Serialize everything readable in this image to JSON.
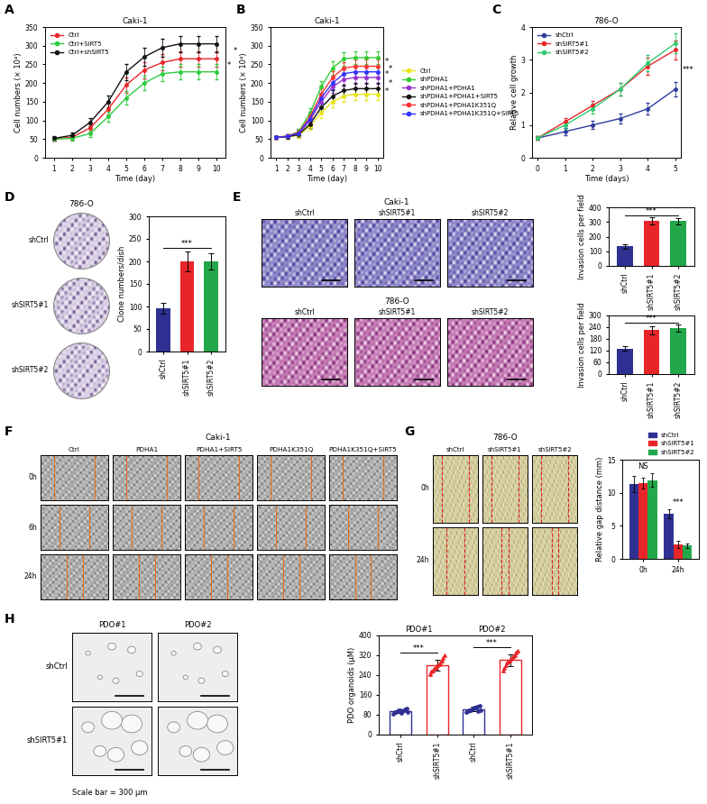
{
  "chart_data": [
    {
      "panel": "A",
      "type": "line",
      "title": "Caki-1",
      "xlabel": "Time (day)",
      "ylabel": "Cell numbers (× 10⁴)",
      "x": [
        1,
        2,
        3,
        4,
        5,
        6,
        7,
        8,
        9,
        10
      ],
      "xlim": [
        0.5,
        10.5
      ],
      "xticks": [
        1,
        2,
        3,
        4,
        5,
        6,
        7,
        8,
        9,
        10
      ],
      "ylim": [
        0,
        350
      ],
      "yticks": [
        0,
        50,
        100,
        150,
        200,
        250,
        300,
        350
      ],
      "legend": "upper left",
      "series": [
        {
          "name": "Ctrl",
          "color": "#e8262a",
          "marker": "o",
          "values": [
            50,
            55,
            80,
            130,
            195,
            235,
            255,
            265,
            265,
            265
          ],
          "errors": [
            5,
            6,
            10,
            15,
            20,
            22,
            22,
            20,
            20,
            20
          ]
        },
        {
          "name": "Ctrl+SIRT5",
          "color": "#2ecc40",
          "marker": "o",
          "values": [
            50,
            52,
            65,
            110,
            160,
            200,
            225,
            230,
            230,
            230
          ],
          "errors": [
            5,
            6,
            9,
            14,
            18,
            20,
            20,
            20,
            20,
            20
          ]
        },
        {
          "name": "Ctrl+shSIRT5",
          "color": "#111111",
          "marker": "o",
          "values": [
            52,
            60,
            95,
            150,
            230,
            270,
            295,
            305,
            305,
            305
          ],
          "errors": [
            5,
            7,
            11,
            16,
            22,
            24,
            24,
            22,
            22,
            22
          ]
        }
      ],
      "annotations": [
        "*",
        "*"
      ]
    },
    {
      "panel": "B",
      "type": "line",
      "title": "Caki-1",
      "xlabel": "Time (day)",
      "ylabel": "Cell numbers (× 10⁴)",
      "x": [
        1,
        2,
        3,
        4,
        5,
        6,
        7,
        8,
        9,
        10
      ],
      "xlim": [
        0.5,
        10.5
      ],
      "xticks": [
        1,
        2,
        3,
        4,
        5,
        6,
        7,
        8,
        9,
        10
      ],
      "ylim": [
        0,
        350
      ],
      "yticks": [
        0,
        50,
        100,
        150,
        200,
        250,
        300,
        350
      ],
      "legend": "right",
      "series": [
        {
          "name": "Ctrl",
          "color": "#e6e619",
          "marker": "o",
          "values": [
            55,
            56,
            60,
            85,
            120,
            150,
            165,
            170,
            170,
            170
          ],
          "errors": [
            4,
            5,
            7,
            10,
            13,
            15,
            15,
            15,
            15,
            15
          ]
        },
        {
          "name": "shPDHA1",
          "color": "#33cc33",
          "marker": "o",
          "values": [
            55,
            58,
            70,
            120,
            190,
            240,
            265,
            268,
            268,
            268
          ],
          "errors": [
            4,
            5,
            8,
            12,
            16,
            18,
            18,
            18,
            18,
            18
          ]
        },
        {
          "name": "shPDHA1+PDHA1",
          "color": "#9933cc",
          "marker": "o",
          "values": [
            55,
            57,
            65,
            100,
            150,
            190,
            210,
            215,
            215,
            215
          ],
          "errors": [
            4,
            5,
            8,
            11,
            14,
            16,
            16,
            16,
            16,
            16
          ]
        },
        {
          "name": "shPDHA1+PDHA1+SIRT5",
          "color": "#111111",
          "marker": "o",
          "values": [
            55,
            56,
            62,
            90,
            135,
            165,
            180,
            185,
            185,
            185
          ],
          "errors": [
            4,
            5,
            7,
            10,
            13,
            15,
            15,
            15,
            15,
            15
          ]
        },
        {
          "name": "shPDHA1+PDHA1K351Q",
          "color": "#ff3333",
          "marker": "o",
          "values": [
            55,
            58,
            68,
            110,
            170,
            215,
            240,
            245,
            245,
            245
          ],
          "errors": [
            4,
            5,
            8,
            12,
            15,
            17,
            17,
            17,
            17,
            17
          ]
        },
        {
          "name": "shPDHA1+PDHA1K351Q+SIRT5",
          "color": "#3333ff",
          "marker": "o",
          "values": [
            55,
            57,
            66,
            105,
            160,
            200,
            225,
            230,
            230,
            230
          ],
          "errors": [
            4,
            5,
            8,
            11,
            15,
            17,
            17,
            17,
            17,
            17
          ]
        }
      ],
      "annotations": [
        "*",
        "*",
        "*",
        "*",
        "*"
      ]
    },
    {
      "panel": "C",
      "type": "line",
      "title": "786-O",
      "xlabel": "Time (days)",
      "ylabel": "Relative cell growth",
      "x": [
        0,
        1,
        2,
        3,
        4,
        5
      ],
      "xlim": [
        -0.2,
        5.2
      ],
      "xticks": [
        0,
        1,
        2,
        3,
        4,
        5
      ],
      "ylim": [
        0,
        4
      ],
      "yticks": [
        0,
        1,
        2,
        3,
        4
      ],
      "legend": "upper left",
      "series": [
        {
          "name": "shCtrl",
          "color": "#2e3d9e",
          "marker": "o",
          "values": [
            0.6,
            0.8,
            1.0,
            1.2,
            1.5,
            2.1
          ],
          "errors": [
            0.05,
            0.1,
            0.12,
            0.15,
            0.18,
            0.22
          ]
        },
        {
          "name": "shSIRT5#1",
          "color": "#e8262a",
          "marker": "o",
          "values": [
            0.6,
            1.1,
            1.6,
            2.1,
            2.8,
            3.3
          ],
          "errors": [
            0.05,
            0.12,
            0.15,
            0.2,
            0.25,
            0.3
          ]
        },
        {
          "name": "shSIRT5#2",
          "color": "#2ecc71",
          "marker": "o",
          "values": [
            0.6,
            1.0,
            1.5,
            2.1,
            2.9,
            3.5
          ],
          "errors": [
            0.05,
            0.12,
            0.15,
            0.2,
            0.25,
            0.3
          ]
        }
      ],
      "annotations": [
        "***"
      ]
    },
    {
      "type": "bar",
      "ylabel": "Clone numbers/dish",
      "categories": [
        "shCtrl",
        "shSIRT5#1",
        "shSIRT5#2"
      ],
      "values": [
        97,
        200,
        200
      ],
      "errors": [
        12,
        22,
        18
      ],
      "colors": [
        "#2e3192",
        "#e8262a",
        "#22a84a"
      ],
      "ylim": [
        0,
        300
      ],
      "yticks": [
        0,
        50,
        100,
        150,
        200,
        250,
        300
      ],
      "annotations": [
        "***"
      ]
    },
    {
      "type": "bar",
      "ylabel": "Invasion cells per field",
      "categories": [
        "shCtrl",
        "shSIRT5#1",
        "shSIRT5#2"
      ],
      "values": [
        135,
        310,
        305
      ],
      "errors": [
        15,
        25,
        20
      ],
      "colors": [
        "#2e3192",
        "#e8262a",
        "#22a84a"
      ],
      "ylim": [
        0,
        400
      ],
      "yticks": [
        0,
        100,
        200,
        300,
        400
      ],
      "annotations": [
        "***"
      ]
    },
    {
      "type": "bar",
      "ylabel": "Invasion cells per field",
      "categories": [
        "shCtrl",
        "shSIRT5#1",
        "shSIRT5#2"
      ],
      "values": [
        130,
        225,
        235
      ],
      "errors": [
        12,
        20,
        18
      ],
      "colors": [
        "#2e3192",
        "#e8262a",
        "#22a84a"
      ],
      "ylim": [
        0,
        300
      ],
      "yticks": [
        0,
        60,
        120,
        180,
        240,
        300
      ],
      "annotations": [
        "***"
      ]
    },
    {
      "type": "bar",
      "ylabel": "Relative gap distance (mm)",
      "categories": [
        "0h",
        "24h"
      ],
      "legend": "top",
      "ylim": [
        0,
        15
      ],
      "yticks": [
        0,
        5,
        10,
        15
      ],
      "series": [
        {
          "name": "shCtrl",
          "color": "#2e3192",
          "values": [
            11.3,
            6.8
          ],
          "errors": [
            1.2,
            0.7
          ]
        },
        {
          "name": "shSIRT5#1",
          "color": "#e8262a",
          "values": [
            11.5,
            2.2
          ],
          "errors": [
            0.8,
            0.5
          ]
        },
        {
          "name": "shSIRT5#2",
          "color": "#22a84a",
          "values": [
            11.9,
            2.0
          ],
          "errors": [
            1.0,
            0.3
          ]
        }
      ],
      "annotations": [
        "NS",
        "***"
      ]
    },
    {
      "type": "bar",
      "ylabel": "PDO organoids (µM)",
      "categories": [
        "shCtrl",
        "shSIRT5#1",
        "shCtrl",
        "shSIRT5#1"
      ],
      "groups": [
        "PDO#1",
        "PDO#2"
      ],
      "values": [
        95,
        280,
        103,
        301
      ],
      "errors": [
        7,
        22,
        8,
        23
      ],
      "colors": [
        "#2e3192",
        "#e8262a",
        "#2e3192",
        "#e8262a"
      ],
      "points": [
        [
          85,
          90,
          92,
          95,
          98,
          100,
          88,
          93,
          97,
          102,
          105,
          90
        ],
        [
          245,
          255,
          260,
          265,
          270,
          275,
          280,
          285,
          290,
          300,
          310,
          320
        ],
        [
          90,
          95,
          98,
          100,
          102,
          105,
          108,
          110,
          112,
          95,
          115,
          100
        ],
        [
          260,
          270,
          280,
          290,
          295,
          300,
          305,
          310,
          315,
          320,
          330,
          340
        ]
      ],
      "ylim": [
        0,
        400
      ],
      "yticks": [
        0,
        80,
        160,
        240,
        320,
        400
      ],
      "annotations": [
        "***",
        "***"
      ]
    }
  ],
  "images": [
    {
      "panel": "D",
      "title": "786-O",
      "rows": [
        "shCtrl",
        "shSIRT5#1",
        "shSIRT5#2"
      ]
    },
    {
      "panel": "E",
      "groups": [
        {
          "title": "Caki-1",
          "columns": [
            "shCtrl",
            "shSIRT5#1",
            "shSIRT5#2"
          ]
        },
        {
          "title": "786-O",
          "columns": [
            "shCtrl",
            "shSIRT5#1",
            "shSIRT5#2"
          ]
        }
      ]
    },
    {
      "panel": "F",
      "title": "Caki-1",
      "columns": [
        "Ctrl",
        "PDHA1",
        "PDHA1+SIRT5",
        "PDHA1K351Q",
        "PDHA1K351Q+SIRT5"
      ],
      "rows": [
        "0h",
        "6h",
        "24h"
      ]
    },
    {
      "panel": "G",
      "title": "786-O",
      "columns": [
        "shCtrl",
        "shSIRT5#1",
        "shSIRT5#2"
      ],
      "rows": [
        "0h",
        "24h"
      ]
    },
    {
      "panel": "H",
      "columns": [
        "PDO#1",
        "PDO#2"
      ],
      "rows": [
        "shCtrl",
        "shSIRT5#1"
      ],
      "note": "Scale bar = 300 µm"
    }
  ]
}
